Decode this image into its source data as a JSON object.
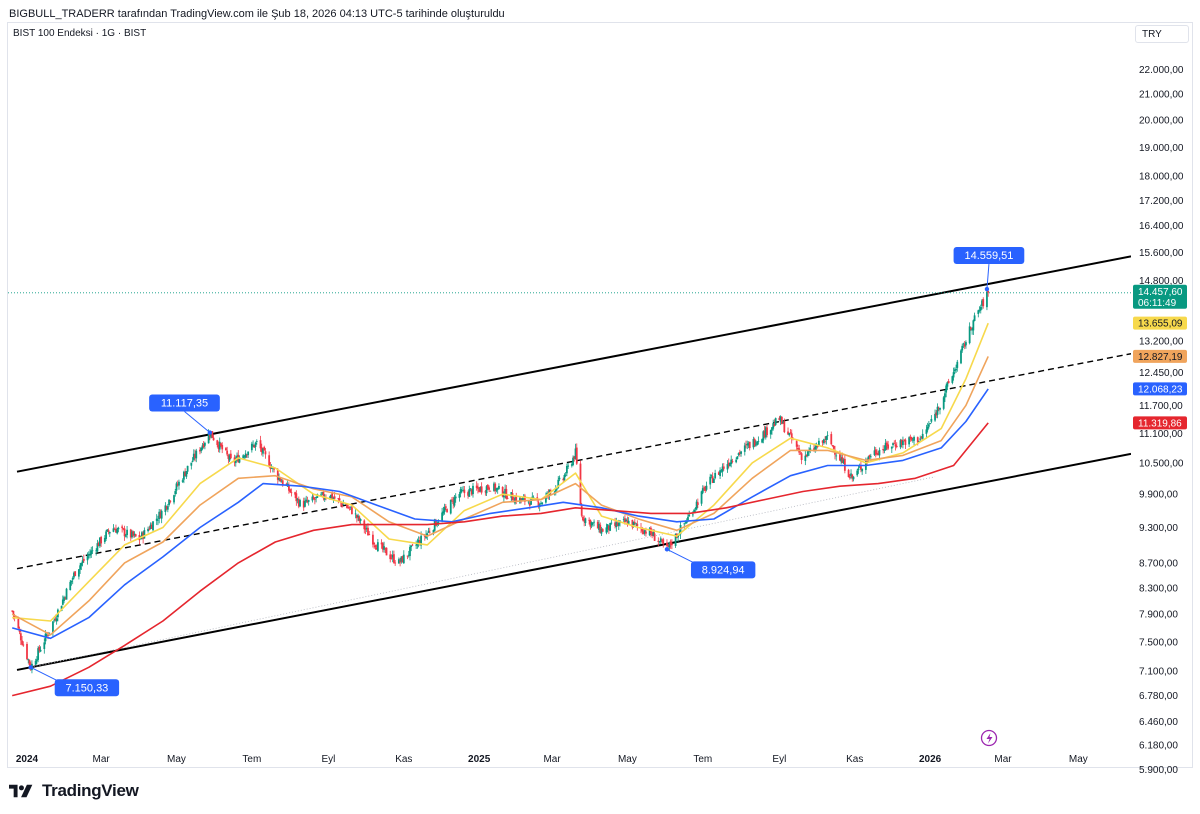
{
  "header": {
    "attribution": "BIGBULL_TRADERR tarafından TradingView.com ile Şub 18, 2026 04:13 UTC-5 tarihinde oluşturuldu",
    "symbol": "BIST 100 Endeksi · 1G · BIST",
    "currency": "TRY"
  },
  "footer": {
    "brand": "TradingView"
  },
  "colors": {
    "up": "#089981",
    "down": "#f23645",
    "ema_fast": "#f7d94c",
    "ema_mid": "#f0a45c",
    "ema_blue": "#2962ff",
    "ema_red": "#e5262e",
    "accent": "#2962ff"
  },
  "chart_data": {
    "type": "candlestick",
    "scale": "log",
    "ylim": [
      5800,
      23000
    ],
    "y_ticks": [
      {
        "value": 22000,
        "label": "22.000,00"
      },
      {
        "value": 21000,
        "label": "21.000,00"
      },
      {
        "value": 20000,
        "label": "20.000,00"
      },
      {
        "value": 19000,
        "label": "19.000,00"
      },
      {
        "value": 18000,
        "label": "18.000,00"
      },
      {
        "value": 17200,
        "label": "17.200,00"
      },
      {
        "value": 16400,
        "label": "16.400,00"
      },
      {
        "value": 15600,
        "label": "15.600,00"
      },
      {
        "value": 14800,
        "label": "14.800,00"
      },
      {
        "value": 13200,
        "label": "13.200,00"
      },
      {
        "value": 12450,
        "label": "12.450,00"
      },
      {
        "value": 11700,
        "label": "11.700,00"
      },
      {
        "value": 11100,
        "label": "11.100,00"
      },
      {
        "value": 10500,
        "label": "10.500,00"
      },
      {
        "value": 9900,
        "label": "9.900,00"
      },
      {
        "value": 9300,
        "label": "9.300,00"
      },
      {
        "value": 8700,
        "label": "8.700,00"
      },
      {
        "value": 8300,
        "label": "8.300,00"
      },
      {
        "value": 7900,
        "label": "7.900,00"
      },
      {
        "value": 7500,
        "label": "7.500,00"
      },
      {
        "value": 7100,
        "label": "7.100,00"
      },
      {
        "value": 6780,
        "label": "6.780,00"
      },
      {
        "value": 6460,
        "label": "6.460,00"
      },
      {
        "value": 6180,
        "label": "6.180,00"
      },
      {
        "value": 5900,
        "label": "5.900,00"
      }
    ],
    "x_ticks": [
      {
        "date": "2024-01-01",
        "label": "2024",
        "bold": true
      },
      {
        "date": "2024-03-01",
        "label": "Mar",
        "bold": false
      },
      {
        "date": "2024-05-01",
        "label": "May",
        "bold": false
      },
      {
        "date": "2024-07-01",
        "label": "Tem",
        "bold": false
      },
      {
        "date": "2024-09-01",
        "label": "Eyl",
        "bold": false
      },
      {
        "date": "2024-11-01",
        "label": "Kas",
        "bold": false
      },
      {
        "date": "2025-01-01",
        "label": "2025",
        "bold": true
      },
      {
        "date": "2025-03-01",
        "label": "Mar",
        "bold": false
      },
      {
        "date": "2025-05-01",
        "label": "May",
        "bold": false
      },
      {
        "date": "2025-07-01",
        "label": "Tem",
        "bold": false
      },
      {
        "date": "2025-09-01",
        "label": "Eyl",
        "bold": false
      },
      {
        "date": "2025-11-01",
        "label": "Kas",
        "bold": false
      },
      {
        "date": "2026-01-01",
        "label": "2026",
        "bold": true
      },
      {
        "date": "2026-03-01",
        "label": "Mar",
        "bold": false
      },
      {
        "date": "2026-05-01",
        "label": "May",
        "bold": false
      }
    ],
    "price_path": [
      [
        "2023-12-20",
        7950
      ],
      [
        "2024-01-04",
        7150
      ],
      [
        "2024-01-20",
        7700
      ],
      [
        "2024-02-10",
        8600
      ],
      [
        "2024-03-10",
        9300
      ],
      [
        "2024-04-01",
        9100
      ],
      [
        "2024-04-20",
        9600
      ],
      [
        "2024-05-10",
        10400
      ],
      [
        "2024-05-28",
        11117
      ],
      [
        "2024-06-15",
        10500
      ],
      [
        "2024-07-05",
        10900
      ],
      [
        "2024-07-20",
        10300
      ],
      [
        "2024-08-10",
        9700
      ],
      [
        "2024-09-01",
        9900
      ],
      [
        "2024-09-20",
        9600
      ],
      [
        "2024-10-10",
        9000
      ],
      [
        "2024-10-28",
        8700
      ],
      [
        "2024-11-20",
        9200
      ],
      [
        "2024-12-15",
        9900
      ],
      [
        "2025-01-10",
        10050
      ],
      [
        "2025-02-01",
        9800
      ],
      [
        "2025-02-20",
        9750
      ],
      [
        "2025-03-10",
        10200
      ],
      [
        "2025-03-20",
        10700
      ],
      [
        "2025-03-25",
        9500
      ],
      [
        "2025-04-10",
        9250
      ],
      [
        "2025-05-01",
        9400
      ],
      [
        "2025-05-20",
        9200
      ],
      [
        "2025-06-02",
        8925
      ],
      [
        "2025-06-20",
        9500
      ],
      [
        "2025-07-05",
        10100
      ],
      [
        "2025-07-25",
        10600
      ],
      [
        "2025-08-15",
        11000
      ],
      [
        "2025-09-01",
        11400
      ],
      [
        "2025-09-20",
        10600
      ],
      [
        "2025-10-10",
        11000
      ],
      [
        "2025-10-30",
        10200
      ],
      [
        "2025-11-15",
        10700
      ],
      [
        "2025-12-05",
        10900
      ],
      [
        "2025-12-25",
        11000
      ],
      [
        "2026-01-05",
        11500
      ],
      [
        "2026-01-20",
        12450
      ],
      [
        "2026-02-05",
        13700
      ],
      [
        "2026-02-17",
        14457
      ]
    ],
    "moving_averages": [
      {
        "color": "#f7d94c",
        "last": "13.655,09",
        "points": [
          [
            "2023-12-20",
            7850
          ],
          [
            "2024-01-20",
            7800
          ],
          [
            "2024-02-20",
            8400
          ],
          [
            "2024-03-20",
            9000
          ],
          [
            "2024-04-20",
            9300
          ],
          [
            "2024-05-20",
            10100
          ],
          [
            "2024-06-20",
            10600
          ],
          [
            "2024-07-20",
            10400
          ],
          [
            "2024-08-20",
            9900
          ],
          [
            "2024-09-20",
            9700
          ],
          [
            "2024-10-20",
            9100
          ],
          [
            "2024-11-20",
            9000
          ],
          [
            "2024-12-20",
            9600
          ],
          [
            "2025-01-20",
            9900
          ],
          [
            "2025-02-20",
            9800
          ],
          [
            "2025-03-20",
            10300
          ],
          [
            "2025-04-10",
            9500
          ],
          [
            "2025-05-10",
            9300
          ],
          [
            "2025-06-10",
            9150
          ],
          [
            "2025-07-10",
            9700
          ],
          [
            "2025-08-10",
            10500
          ],
          [
            "2025-09-10",
            11000
          ],
          [
            "2025-10-10",
            10800
          ],
          [
            "2025-11-10",
            10500
          ],
          [
            "2025-12-10",
            10700
          ],
          [
            "2026-01-10",
            11200
          ],
          [
            "2026-01-30",
            12300
          ],
          [
            "2026-02-17",
            13655
          ]
        ]
      },
      {
        "color": "#f0a45c",
        "last": "12.827,19",
        "points": [
          [
            "2023-12-20",
            7900
          ],
          [
            "2024-01-20",
            7600
          ],
          [
            "2024-02-20",
            8100
          ],
          [
            "2024-03-20",
            8700
          ],
          [
            "2024-04-20",
            9050
          ],
          [
            "2024-05-20",
            9700
          ],
          [
            "2024-06-20",
            10200
          ],
          [
            "2024-07-20",
            10250
          ],
          [
            "2024-08-20",
            10000
          ],
          [
            "2024-09-20",
            9850
          ],
          [
            "2024-10-20",
            9400
          ],
          [
            "2024-11-20",
            9150
          ],
          [
            "2024-12-20",
            9450
          ],
          [
            "2025-01-20",
            9750
          ],
          [
            "2025-02-20",
            9800
          ],
          [
            "2025-03-20",
            10100
          ],
          [
            "2025-04-10",
            9700
          ],
          [
            "2025-05-10",
            9450
          ],
          [
            "2025-06-10",
            9250
          ],
          [
            "2025-07-10",
            9550
          ],
          [
            "2025-08-10",
            10200
          ],
          [
            "2025-09-10",
            10750
          ],
          [
            "2025-10-10",
            10750
          ],
          [
            "2025-11-10",
            10550
          ],
          [
            "2025-12-10",
            10650
          ],
          [
            "2026-01-10",
            10950
          ],
          [
            "2026-01-30",
            11700
          ],
          [
            "2026-02-17",
            12827
          ]
        ]
      },
      {
        "color": "#2962ff",
        "last": "12.068,23",
        "points": [
          [
            "2023-12-20",
            7700
          ],
          [
            "2024-01-20",
            7550
          ],
          [
            "2024-02-20",
            7850
          ],
          [
            "2024-03-20",
            8350
          ],
          [
            "2024-04-20",
            8800
          ],
          [
            "2024-05-20",
            9300
          ],
          [
            "2024-06-20",
            9750
          ],
          [
            "2024-07-10",
            10100
          ],
          [
            "2024-08-10",
            10050
          ],
          [
            "2024-09-10",
            9950
          ],
          [
            "2024-10-10",
            9700
          ],
          [
            "2024-11-10",
            9450
          ],
          [
            "2024-12-10",
            9400
          ],
          [
            "2025-01-10",
            9550
          ],
          [
            "2025-02-10",
            9650
          ],
          [
            "2025-03-10",
            9750
          ],
          [
            "2025-04-10",
            9650
          ],
          [
            "2025-05-10",
            9500
          ],
          [
            "2025-06-10",
            9400
          ],
          [
            "2025-07-10",
            9450
          ],
          [
            "2025-08-10",
            9850
          ],
          [
            "2025-09-10",
            10250
          ],
          [
            "2025-10-10",
            10450
          ],
          [
            "2025-11-10",
            10450
          ],
          [
            "2025-12-10",
            10550
          ],
          [
            "2026-01-10",
            10800
          ],
          [
            "2026-01-30",
            11350
          ],
          [
            "2026-02-17",
            12068
          ]
        ]
      },
      {
        "color": "#e5262e",
        "last": "11.319,86",
        "points": [
          [
            "2023-12-20",
            6780
          ],
          [
            "2024-01-20",
            6900
          ],
          [
            "2024-02-20",
            7150
          ],
          [
            "2024-03-20",
            7450
          ],
          [
            "2024-04-20",
            7800
          ],
          [
            "2024-05-20",
            8250
          ],
          [
            "2024-06-20",
            8700
          ],
          [
            "2024-07-20",
            9050
          ],
          [
            "2024-08-20",
            9250
          ],
          [
            "2024-09-20",
            9350
          ],
          [
            "2024-10-20",
            9350
          ],
          [
            "2024-11-20",
            9350
          ],
          [
            "2024-12-20",
            9400
          ],
          [
            "2025-01-20",
            9500
          ],
          [
            "2025-02-20",
            9550
          ],
          [
            "2025-03-20",
            9650
          ],
          [
            "2025-04-20",
            9600
          ],
          [
            "2025-05-20",
            9550
          ],
          [
            "2025-06-20",
            9550
          ],
          [
            "2025-07-20",
            9650
          ],
          [
            "2025-08-20",
            9800
          ],
          [
            "2025-09-20",
            9950
          ],
          [
            "2025-10-20",
            10050
          ],
          [
            "2025-11-20",
            10100
          ],
          [
            "2025-12-20",
            10200
          ],
          [
            "2026-01-20",
            10450
          ],
          [
            "2026-02-17",
            11320
          ]
        ]
      }
    ],
    "trend_lines": [
      {
        "style": "solid",
        "from": [
          "2024-01-04",
          10380
        ],
        "to": [
          "2026-05-10",
          15250
        ]
      },
      {
        "style": "solid",
        "from": [
          "2024-01-04",
          7150
        ],
        "to": [
          "2026-05-10",
          10520
        ]
      },
      {
        "style": "dashed",
        "from": [
          "2024-01-04",
          8650
        ],
        "to": [
          "2026-05-10",
          12700
        ]
      },
      {
        "style": "dotted",
        "from": [
          "2024-01-04",
          7150
        ],
        "to": [
          "2026-01-05",
          10230
        ]
      }
    ],
    "annotations": [
      {
        "label": "11.117,35",
        "date": "2024-05-28",
        "value": 11117,
        "place": "above-left"
      },
      {
        "label": "7.150,33",
        "date": "2024-01-04",
        "value": 7150,
        "place": "below-right"
      },
      {
        "label": "8.924,94",
        "date": "2025-06-02",
        "value": 8925,
        "place": "below-right"
      },
      {
        "label": "14.559,51",
        "date": "2026-02-16",
        "value": 14560,
        "place": "above"
      }
    ],
    "last_price": {
      "value": 14457.6,
      "label": "14.457,60",
      "countdown": "06:11:49",
      "color": "#089981"
    }
  }
}
